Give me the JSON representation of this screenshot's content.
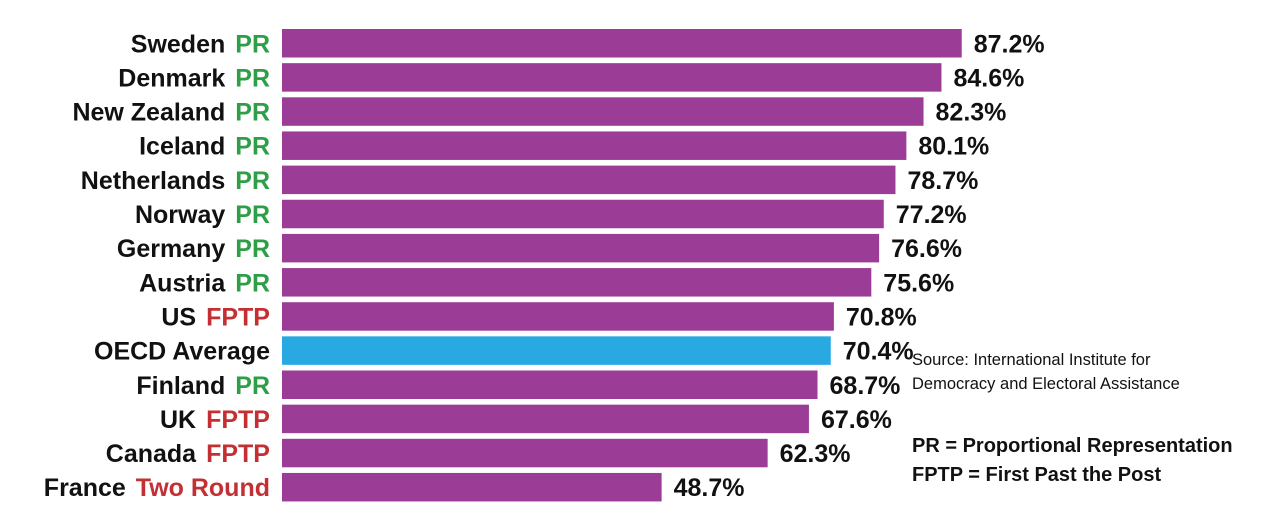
{
  "chart_data": {
    "type": "bar",
    "orientation": "horizontal",
    "categories": [
      "Sweden",
      "Denmark",
      "New Zealand",
      "Iceland",
      "Netherlands",
      "Norway",
      "Germany",
      "Austria",
      "US",
      "OECD Average",
      "Finland",
      "UK",
      "Canada",
      "France"
    ],
    "systems": [
      "PR",
      "PR",
      "PR",
      "PR",
      "PR",
      "PR",
      "PR",
      "PR",
      "FPTP",
      "",
      "PR",
      "FPTP",
      "FPTP",
      "Two Round"
    ],
    "values": [
      87.2,
      84.6,
      82.3,
      80.1,
      78.7,
      77.2,
      76.6,
      75.6,
      70.8,
      70.4,
      68.7,
      67.6,
      62.3,
      48.7
    ],
    "value_labels": [
      "87.2%",
      "84.6%",
      "82.3%",
      "80.1%",
      "78.7%",
      "77.2%",
      "76.6%",
      "75.6%",
      "70.8%",
      "70.4%",
      "68.7%",
      "67.6%",
      "62.3%",
      "48.7%"
    ],
    "highlight_category": "OECD Average",
    "xlim": [
      0,
      100
    ],
    "grid": false,
    "legend": "none",
    "colors": {
      "bar": "#9b3d96",
      "highlight_bar": "#29a9e1",
      "PR": "#2e9e47",
      "FPTP": "#c42f33",
      "Two Round": "#c42f33"
    }
  },
  "notes": {
    "source_line1": "Source: International Institute for",
    "source_line2": "Democracy and Electoral Assistance",
    "legend_pr": "PR = Proportional Representation",
    "legend_fptp": "FPTP = First Past the Post"
  }
}
